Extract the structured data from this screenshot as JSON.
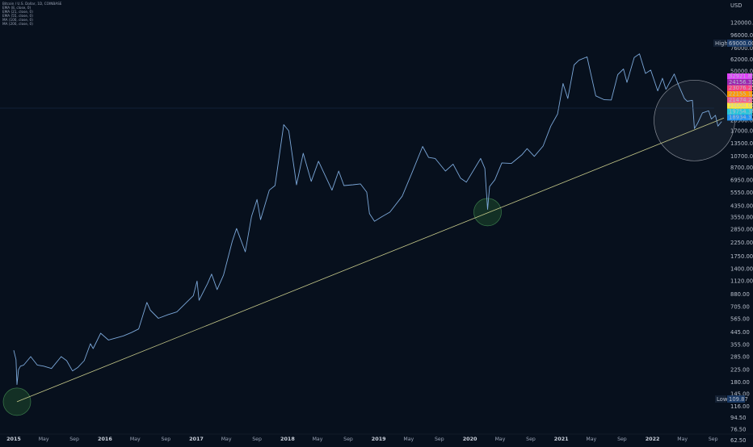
{
  "legend": {
    "title": "Bitcoin / U.S. Dollar, 1D, COINBASE",
    "lines": [
      "EMA (8, close, 0)",
      "EMA (21, close, 0)",
      "EMA (55, close, 0)",
      "MA (100, close, 0)",
      "MA (200, close, 0)"
    ]
  },
  "markers": {
    "high": {
      "label": "High",
      "value": "69000.00"
    },
    "low": {
      "label": "Low",
      "value": "109.87"
    }
  },
  "indicator_tags": [
    {
      "value": "32921.89",
      "color": "#e040fb"
    },
    {
      "value": "24156.35",
      "color": "#9c27b0"
    },
    {
      "value": "23076.25",
      "color": "#ff4081"
    },
    {
      "value": "22155.12",
      "color": "#ff9800"
    },
    {
      "value": "21474.25",
      "color": "#f06292"
    },
    {
      "value": "20000.00",
      "color": "#ffeb3b"
    },
    {
      "value": "19754.36",
      "color": "#26c6da"
    },
    {
      "value": "18934.37",
      "color": "#2196f3"
    }
  ],
  "colors": {
    "background": "#07101d",
    "price_line": "#7ba7d8",
    "trend_line": "#c5c889",
    "circle_green_fill": "#1e4a2c",
    "circle_green_stroke": "#3a7a4a",
    "circle_gray_stroke": "#8a8f99",
    "axis_text": "#b8bfcc"
  },
  "chart_data": {
    "type": "line",
    "title": "Bitcoin / U.S. Dollar, 1D, COINBASE",
    "yscale": "log",
    "ylabel": "USD",
    "ylim": [
      58,
      150000
    ],
    "xlim": [
      "2015-01-01",
      "2022-10-14"
    ],
    "yticks": [
      "120000.00",
      "96000.00",
      "76000.00",
      "62000.00",
      "50000.00",
      "40000.00",
      "32000.00",
      "25000.00",
      "20500.00",
      "17000.00",
      "13500.00",
      "10700.00",
      "8700.00",
      "6950.00",
      "5550.00",
      "4350.00",
      "3550.00",
      "2850.00",
      "2250.00",
      "1750.00",
      "1400.00",
      "1120.00",
      "880.00",
      "705.00",
      "565.00",
      "445.00",
      "355.00",
      "285.00",
      "225.00",
      "180.00",
      "145.00",
      "116.00",
      "94.50",
      "76.50",
      "62.50"
    ],
    "xticks": [
      {
        "date": "2015-01-01",
        "label": "2015",
        "year": true
      },
      {
        "date": "2015-05-01",
        "label": "May",
        "year": false
      },
      {
        "date": "2015-09-01",
        "label": "Sep",
        "year": false
      },
      {
        "date": "2016-01-01",
        "label": "2016",
        "year": true
      },
      {
        "date": "2016-05-01",
        "label": "May",
        "year": false
      },
      {
        "date": "2016-09-01",
        "label": "Sep",
        "year": false
      },
      {
        "date": "2017-01-01",
        "label": "2017",
        "year": true
      },
      {
        "date": "2017-05-01",
        "label": "May",
        "year": false
      },
      {
        "date": "2017-09-01",
        "label": "Sep",
        "year": false
      },
      {
        "date": "2018-01-01",
        "label": "2018",
        "year": true
      },
      {
        "date": "2018-05-01",
        "label": "May",
        "year": false
      },
      {
        "date": "2018-09-01",
        "label": "Sep",
        "year": false
      },
      {
        "date": "2019-01-01",
        "label": "2019",
        "year": true
      },
      {
        "date": "2019-05-01",
        "label": "May",
        "year": false
      },
      {
        "date": "2019-09-01",
        "label": "Sep",
        "year": false
      },
      {
        "date": "2020-01-01",
        "label": "2020",
        "year": true
      },
      {
        "date": "2020-05-01",
        "label": "May",
        "year": false
      },
      {
        "date": "2020-09-01",
        "label": "Sep",
        "year": false
      },
      {
        "date": "2021-01-01",
        "label": "2021",
        "year": true
      },
      {
        "date": "2021-05-01",
        "label": "May",
        "year": false
      },
      {
        "date": "2021-09-01",
        "label": "Sep",
        "year": false
      },
      {
        "date": "2022-01-01",
        "label": "2022",
        "year": true
      },
      {
        "date": "2022-05-01",
        "label": "May",
        "year": false
      },
      {
        "date": "2022-09-01",
        "label": "Sep",
        "year": false
      }
    ],
    "series": [
      {
        "x": [
          "2015-01-01",
          "2015-01-10",
          "2015-01-14",
          "2015-01-20",
          "2015-01-28",
          "2015-02-10",
          "2015-03-10",
          "2015-04-05",
          "2015-05-01",
          "2015-06-01",
          "2015-07-10",
          "2015-08-01",
          "2015-08-24",
          "2015-09-15",
          "2015-10-10",
          "2015-11-04",
          "2015-11-15",
          "2015-12-15",
          "2016-01-15",
          "2016-02-15",
          "2016-03-15",
          "2016-04-15",
          "2016-05-15",
          "2016-06-17",
          "2016-07-01",
          "2016-08-02",
          "2016-09-10",
          "2016-10-15",
          "2016-11-15",
          "2016-12-20",
          "2017-01-04",
          "2017-01-12",
          "2017-02-15",
          "2017-03-03",
          "2017-03-25",
          "2017-04-20",
          "2017-05-25",
          "2017-06-11",
          "2017-07-16",
          "2017-08-10",
          "2017-09-01",
          "2017-09-15",
          "2017-10-20",
          "2017-11-12",
          "2017-12-17",
          "2018-01-06",
          "2018-02-06",
          "2018-03-05",
          "2018-04-06",
          "2018-05-05",
          "2018-06-28",
          "2018-07-25",
          "2018-08-15",
          "2018-09-20",
          "2018-10-20",
          "2018-11-14",
          "2018-11-25",
          "2018-12-15",
          "2019-01-15",
          "2019-02-15",
          "2019-04-05",
          "2019-05-15",
          "2019-06-26",
          "2019-07-20",
          "2019-08-15",
          "2019-09-25",
          "2019-10-26",
          "2019-11-25",
          "2019-12-18",
          "2020-02-13",
          "2020-03-01",
          "2020-03-12",
          "2020-03-20",
          "2020-04-10",
          "2020-05-08",
          "2020-06-15",
          "2020-07-27",
          "2020-08-17",
          "2020-09-15",
          "2020-10-20",
          "2020-11-20",
          "2020-12-17",
          "2021-01-08",
          "2021-01-27",
          "2021-02-21",
          "2021-03-13",
          "2021-04-14",
          "2021-05-19",
          "2021-06-22",
          "2021-07-20",
          "2021-08-15",
          "2021-09-07",
          "2021-09-21",
          "2021-10-20",
          "2021-11-10",
          "2021-12-04",
          "2021-12-25",
          "2022-01-22",
          "2022-02-10",
          "2022-02-24",
          "2022-03-29",
          "2022-04-15",
          "2022-05-09",
          "2022-05-20",
          "2022-06-10",
          "2022-06-18",
          "2022-07-01",
          "2022-07-20",
          "2022-08-14",
          "2022-08-25",
          "2022-09-10",
          "2022-09-20",
          "2022-10-05"
        ],
        "y": [
          320,
          270,
          172,
          225,
          240,
          245,
          285,
          245,
          240,
          230,
          285,
          265,
          220,
          235,
          265,
          360,
          330,
          435,
          385,
          400,
          415,
          440,
          470,
          760,
          660,
          570,
          610,
          640,
          735,
          860,
          1120,
          790,
          1070,
          1270,
          960,
          1250,
          2300,
          2900,
          1900,
          3600,
          4900,
          3400,
          5800,
          6300,
          19000,
          17000,
          6400,
          11300,
          6800,
          9800,
          5800,
          8200,
          6300,
          6400,
          6500,
          5600,
          3800,
          3300,
          3600,
          3900,
          5200,
          8000,
          12800,
          10500,
          10300,
          8200,
          9300,
          7200,
          6700,
          10300,
          8600,
          4100,
          6200,
          7000,
          9500,
          9400,
          11000,
          12300,
          10700,
          12900,
          18500,
          23000,
          40000,
          30500,
          56000,
          61000,
          64800,
          32000,
          29800,
          29700,
          47000,
          52000,
          40800,
          64000,
          68500,
          48000,
          51000,
          35000,
          44000,
          36000,
          47500,
          39000,
          30500,
          29000,
          29500,
          17700,
          19500,
          23500,
          24400,
          21000,
          22500,
          18500,
          20100
        ]
      }
    ],
    "trend_line": {
      "x": [
        "2015-01-14",
        "2022-10-14"
      ],
      "y": [
        126,
        21400
      ]
    },
    "highlights": [
      {
        "date": "2015-01-14",
        "value": 126,
        "radius_px": 17,
        "style": "green"
      },
      {
        "date": "2020-03-12",
        "value": 3900,
        "radius_px": 17,
        "style": "green"
      },
      {
        "date": "2022-06-18",
        "value": 20500,
        "radius_px": 50,
        "style": "gray"
      }
    ]
  }
}
